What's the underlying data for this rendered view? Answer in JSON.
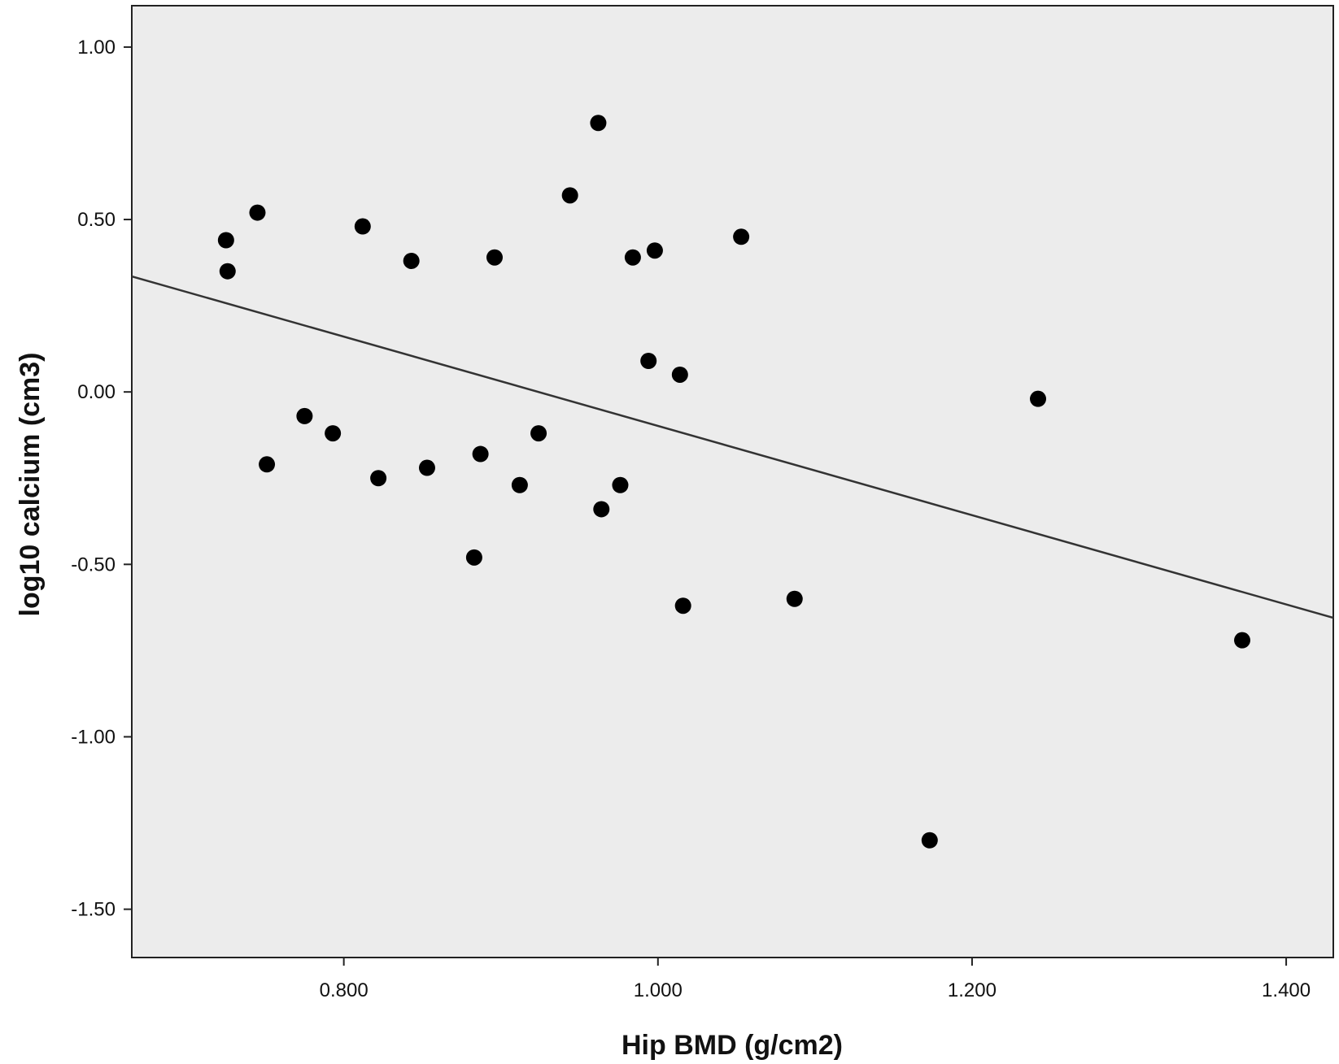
{
  "chart_data": {
    "type": "scatter",
    "title": "",
    "xlabel": "Hip BMD (g/cm2)",
    "ylabel": "log10 calcium (cm3)",
    "xlim": [
      0.665,
      1.43
    ],
    "ylim": [
      -1.64,
      1.12
    ],
    "x_ticks": [
      0.8,
      1.0,
      1.2,
      1.4
    ],
    "x_tick_labels": [
      "0.800",
      "1.000",
      "1.200",
      "1.400"
    ],
    "y_ticks": [
      1.0,
      0.5,
      0.0,
      -0.5,
      -1.0,
      -1.5
    ],
    "y_tick_labels": [
      "1.00",
      "0.50",
      "0.00",
      "-0.50",
      "-1.00",
      "-1.50"
    ],
    "grid": false,
    "plot_background": "#ececec",
    "marker_color": "#000000",
    "points": [
      {
        "x": 0.725,
        "y": 0.44
      },
      {
        "x": 0.726,
        "y": 0.35
      },
      {
        "x": 0.745,
        "y": 0.52
      },
      {
        "x": 0.751,
        "y": -0.21
      },
      {
        "x": 0.775,
        "y": -0.07
      },
      {
        "x": 0.793,
        "y": -0.12
      },
      {
        "x": 0.812,
        "y": 0.48
      },
      {
        "x": 0.822,
        "y": -0.25
      },
      {
        "x": 0.843,
        "y": 0.38
      },
      {
        "x": 0.853,
        "y": -0.22
      },
      {
        "x": 0.883,
        "y": -0.48
      },
      {
        "x": 0.887,
        "y": -0.18
      },
      {
        "x": 0.896,
        "y": 0.39
      },
      {
        "x": 0.912,
        "y": -0.27
      },
      {
        "x": 0.924,
        "y": -0.12
      },
      {
        "x": 0.944,
        "y": 0.57
      },
      {
        "x": 0.962,
        "y": 0.78
      },
      {
        "x": 0.964,
        "y": -0.34
      },
      {
        "x": 0.976,
        "y": -0.27
      },
      {
        "x": 0.984,
        "y": 0.39
      },
      {
        "x": 0.994,
        "y": 0.09
      },
      {
        "x": 0.998,
        "y": 0.41
      },
      {
        "x": 1.014,
        "y": 0.05
      },
      {
        "x": 1.016,
        "y": -0.62
      },
      {
        "x": 1.053,
        "y": 0.45
      },
      {
        "x": 1.087,
        "y": -0.6
      },
      {
        "x": 1.173,
        "y": -1.3
      },
      {
        "x": 1.242,
        "y": -0.02
      },
      {
        "x": 1.372,
        "y": -0.72
      }
    ],
    "fit_line": {
      "x": [
        0.665,
        1.43
      ],
      "y": [
        0.335,
        -0.655
      ]
    }
  }
}
